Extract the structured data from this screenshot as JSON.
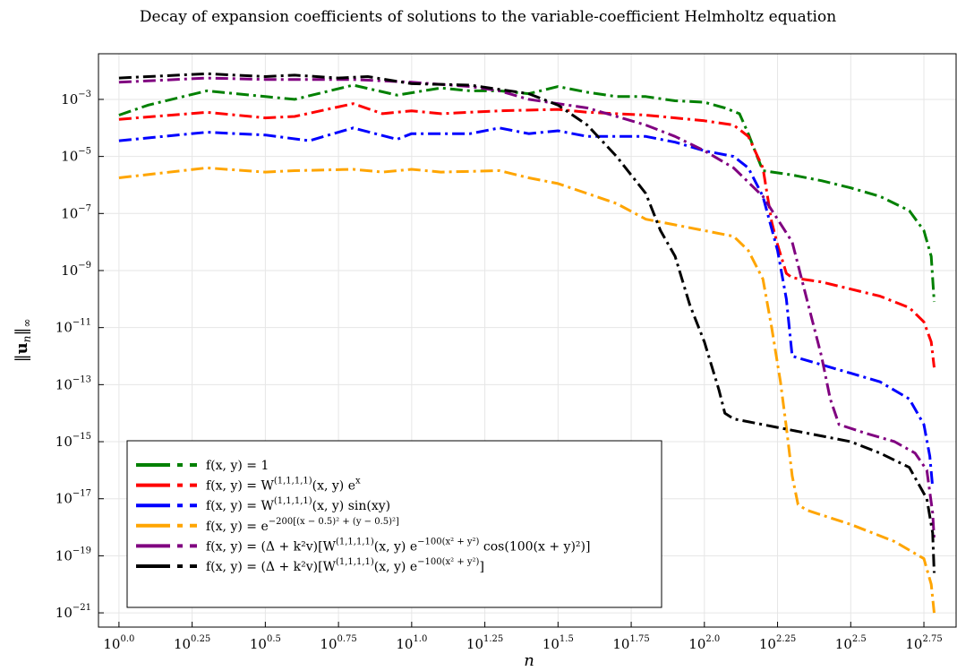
{
  "chart_data": {
    "type": "line",
    "title": "Decay of expansion coefficients of solutions to the variable-coefficient Helmholtz equation",
    "xlabel": "n",
    "ylabel": "‖u_n‖_∞",
    "xscale": "log10",
    "yscale": "log10",
    "xlim_log10": [
      -0.07,
      2.86
    ],
    "ylim_log10": [
      -21.5,
      -1.4
    ],
    "x_ticks": [
      {
        "base": "10",
        "exp": "0.0",
        "log": 0.0
      },
      {
        "base": "10",
        "exp": "0.25",
        "log": 0.25
      },
      {
        "base": "10",
        "exp": "0.5",
        "log": 0.5
      },
      {
        "base": "10",
        "exp": "0.75",
        "log": 0.75
      },
      {
        "base": "10",
        "exp": "1.0",
        "log": 1.0
      },
      {
        "base": "10",
        "exp": "1.25",
        "log": 1.25
      },
      {
        "base": "10",
        "exp": "1.5",
        "log": 1.5
      },
      {
        "base": "10",
        "exp": "1.75",
        "log": 1.75
      },
      {
        "base": "10",
        "exp": "2.0",
        "log": 2.0
      },
      {
        "base": "10",
        "exp": "2.25",
        "log": 2.25
      },
      {
        "base": "10",
        "exp": "2.5",
        "log": 2.5
      },
      {
        "base": "10",
        "exp": "2.75",
        "log": 2.75
      }
    ],
    "y_ticks": [
      {
        "base": "10",
        "exp": "−3",
        "log": -3
      },
      {
        "base": "10",
        "exp": "−5",
        "log": -5
      },
      {
        "base": "10",
        "exp": "−7",
        "log": -7
      },
      {
        "base": "10",
        "exp": "−9",
        "log": -9
      },
      {
        "base": "10",
        "exp": "−11",
        "log": -11
      },
      {
        "base": "10",
        "exp": "−13",
        "log": -13
      },
      {
        "base": "10",
        "exp": "−15",
        "log": -15
      },
      {
        "base": "10",
        "exp": "−17",
        "log": -17
      },
      {
        "base": "10",
        "exp": "−19",
        "log": -19
      },
      {
        "base": "10",
        "exp": "−21",
        "log": -21
      }
    ],
    "grid": true,
    "legend_position": "bottom-left",
    "series": [
      {
        "name": "f(x, y) = 1",
        "color": "#008000",
        "points_log10": [
          [
            0.0,
            -3.55
          ],
          [
            0.1,
            -3.2
          ],
          [
            0.3,
            -2.7
          ],
          [
            0.5,
            -2.9
          ],
          [
            0.6,
            -3.0
          ],
          [
            0.8,
            -2.5
          ],
          [
            0.95,
            -2.85
          ],
          [
            1.1,
            -2.6
          ],
          [
            1.2,
            -2.7
          ],
          [
            1.3,
            -2.7
          ],
          [
            1.4,
            -2.8
          ],
          [
            1.5,
            -2.55
          ],
          [
            1.6,
            -2.75
          ],
          [
            1.7,
            -2.9
          ],
          [
            1.8,
            -2.9
          ],
          [
            1.9,
            -3.05
          ],
          [
            2.0,
            -3.1
          ],
          [
            2.07,
            -3.3
          ],
          [
            2.12,
            -3.5
          ],
          [
            2.15,
            -4.2
          ],
          [
            2.18,
            -5.0
          ],
          [
            2.2,
            -5.5
          ],
          [
            2.3,
            -5.65
          ],
          [
            2.4,
            -5.85
          ],
          [
            2.5,
            -6.1
          ],
          [
            2.6,
            -6.4
          ],
          [
            2.7,
            -6.9
          ],
          [
            2.75,
            -7.6
          ],
          [
            2.775,
            -8.5
          ],
          [
            2.785,
            -10.1
          ]
        ]
      },
      {
        "name": "f(x, y) = W^(1,1,1,1)(x, y) e^x",
        "color": "#ff0000",
        "points_log10": [
          [
            0.0,
            -3.7
          ],
          [
            0.3,
            -3.45
          ],
          [
            0.5,
            -3.65
          ],
          [
            0.6,
            -3.6
          ],
          [
            0.8,
            -3.15
          ],
          [
            0.9,
            -3.5
          ],
          [
            1.0,
            -3.4
          ],
          [
            1.1,
            -3.5
          ],
          [
            1.3,
            -3.4
          ],
          [
            1.5,
            -3.35
          ],
          [
            1.6,
            -3.45
          ],
          [
            1.8,
            -3.55
          ],
          [
            1.9,
            -3.65
          ],
          [
            2.0,
            -3.75
          ],
          [
            2.1,
            -3.9
          ],
          [
            2.15,
            -4.3
          ],
          [
            2.2,
            -5.4
          ],
          [
            2.23,
            -7.3
          ],
          [
            2.25,
            -8.1
          ],
          [
            2.28,
            -9.1
          ],
          [
            2.3,
            -9.25
          ],
          [
            2.4,
            -9.4
          ],
          [
            2.5,
            -9.65
          ],
          [
            2.6,
            -9.9
          ],
          [
            2.7,
            -10.3
          ],
          [
            2.75,
            -10.8
          ],
          [
            2.775,
            -11.5
          ],
          [
            2.785,
            -12.4
          ]
        ]
      },
      {
        "name": "f(x, y) = W^(1,1,1,1)(x, y) sin(xy)",
        "color": "#0000ff",
        "points_log10": [
          [
            0.0,
            -4.45
          ],
          [
            0.3,
            -4.15
          ],
          [
            0.5,
            -4.25
          ],
          [
            0.65,
            -4.45
          ],
          [
            0.8,
            -4.0
          ],
          [
            0.95,
            -4.4
          ],
          [
            1.0,
            -4.2
          ],
          [
            1.2,
            -4.2
          ],
          [
            1.3,
            -4.0
          ],
          [
            1.4,
            -4.2
          ],
          [
            1.5,
            -4.1
          ],
          [
            1.6,
            -4.3
          ],
          [
            1.8,
            -4.3
          ],
          [
            1.9,
            -4.5
          ],
          [
            2.0,
            -4.8
          ],
          [
            2.1,
            -5.0
          ],
          [
            2.15,
            -5.4
          ],
          [
            2.2,
            -6.4
          ],
          [
            2.25,
            -8.3
          ],
          [
            2.28,
            -10.0
          ],
          [
            2.3,
            -12.0
          ],
          [
            2.4,
            -12.3
          ],
          [
            2.5,
            -12.6
          ],
          [
            2.6,
            -12.9
          ],
          [
            2.7,
            -13.5
          ],
          [
            2.75,
            -14.4
          ],
          [
            2.77,
            -15.5
          ],
          [
            2.78,
            -16.6
          ]
        ]
      },
      {
        "name": "f(x, y) = e^(−200[(x − 0.5)² + (y − 0.5)²])",
        "color": "#ffa500",
        "points_log10": [
          [
            0.0,
            -5.75
          ],
          [
            0.3,
            -5.4
          ],
          [
            0.5,
            -5.55
          ],
          [
            0.6,
            -5.5
          ],
          [
            0.8,
            -5.45
          ],
          [
            0.9,
            -5.55
          ],
          [
            1.0,
            -5.45
          ],
          [
            1.1,
            -5.55
          ],
          [
            1.3,
            -5.5
          ],
          [
            1.4,
            -5.75
          ],
          [
            1.5,
            -5.95
          ],
          [
            1.6,
            -6.3
          ],
          [
            1.7,
            -6.65
          ],
          [
            1.8,
            -7.2
          ],
          [
            1.9,
            -7.4
          ],
          [
            2.0,
            -7.6
          ],
          [
            2.1,
            -7.8
          ],
          [
            2.15,
            -8.3
          ],
          [
            2.2,
            -9.3
          ],
          [
            2.23,
            -11.0
          ],
          [
            2.26,
            -12.9
          ],
          [
            2.28,
            -14.5
          ],
          [
            2.3,
            -16.2
          ],
          [
            2.32,
            -17.2
          ],
          [
            2.35,
            -17.4
          ],
          [
            2.5,
            -17.9
          ],
          [
            2.65,
            -18.5
          ],
          [
            2.75,
            -19.1
          ],
          [
            2.775,
            -20.0
          ],
          [
            2.785,
            -21.0
          ]
        ]
      },
      {
        "name": "f(x, y) = (Δ + k²v)[W^(1,1,1,1)(x, y) e^(−100(x² + y²)) cos(100(x + y)²)]",
        "color": "#800080",
        "points_log10": [
          [
            0.0,
            -2.4
          ],
          [
            0.3,
            -2.25
          ],
          [
            0.5,
            -2.3
          ],
          [
            0.6,
            -2.3
          ],
          [
            0.7,
            -2.3
          ],
          [
            0.8,
            -2.3
          ],
          [
            1.0,
            -2.4
          ],
          [
            1.2,
            -2.55
          ],
          [
            1.3,
            -2.7
          ],
          [
            1.4,
            -3.0
          ],
          [
            1.6,
            -3.3
          ],
          [
            1.7,
            -3.6
          ],
          [
            1.8,
            -3.9
          ],
          [
            1.9,
            -4.3
          ],
          [
            2.0,
            -4.8
          ],
          [
            2.1,
            -5.4
          ],
          [
            2.2,
            -6.4
          ],
          [
            2.3,
            -8.0
          ],
          [
            2.35,
            -10.0
          ],
          [
            2.4,
            -12.0
          ],
          [
            2.43,
            -13.5
          ],
          [
            2.46,
            -14.4
          ],
          [
            2.55,
            -14.7
          ],
          [
            2.65,
            -15.0
          ],
          [
            2.72,
            -15.4
          ],
          [
            2.76,
            -16.0
          ],
          [
            2.78,
            -17.5
          ],
          [
            2.785,
            -18.4
          ]
        ]
      },
      {
        "name": "f(x, y) = (Δ + k²v)[W^(1,1,1,1)(x, y) e^(−100(x² + y²))]",
        "color": "#000000",
        "points_log10": [
          [
            0.0,
            -2.25
          ],
          [
            0.3,
            -2.1
          ],
          [
            0.5,
            -2.2
          ],
          [
            0.6,
            -2.15
          ],
          [
            0.75,
            -2.25
          ],
          [
            0.85,
            -2.2
          ],
          [
            1.0,
            -2.45
          ],
          [
            1.2,
            -2.5
          ],
          [
            1.4,
            -2.8
          ],
          [
            1.5,
            -3.2
          ],
          [
            1.6,
            -3.9
          ],
          [
            1.7,
            -5.0
          ],
          [
            1.8,
            -6.3
          ],
          [
            1.85,
            -7.6
          ],
          [
            1.9,
            -8.5
          ],
          [
            1.95,
            -10.2
          ],
          [
            2.0,
            -11.5
          ],
          [
            2.05,
            -13.2
          ],
          [
            2.07,
            -14.0
          ],
          [
            2.1,
            -14.2
          ],
          [
            2.3,
            -14.6
          ],
          [
            2.5,
            -15.0
          ],
          [
            2.6,
            -15.4
          ],
          [
            2.7,
            -15.9
          ],
          [
            2.76,
            -17.0
          ],
          [
            2.78,
            -18.2
          ],
          [
            2.785,
            -19.6
          ]
        ]
      }
    ]
  },
  "legend": {
    "entries": [
      {
        "base": "f(x, y) = 1"
      },
      {
        "base": "f(x, y) = W",
        "sup": "(1,1,1,1)",
        "rest": "(x, y) e",
        "sup2": "x"
      },
      {
        "base": "f(x, y) = W",
        "sup": "(1,1,1,1)",
        "rest": "(x, y) sin(xy)"
      },
      {
        "base": "f(x, y) = e",
        "sup": "−200[(x − 0.5)² + (y − 0.5)²]"
      },
      {
        "base": "f(x, y) = (Δ + k²v)[W",
        "sup": "(1,1,1,1)",
        "rest": "(x, y) e",
        "sup2": "−100(x² + y²)",
        "rest2": " cos(100(x + y)²)]"
      },
      {
        "base": "f(x, y) = (Δ + k²v)[W",
        "sup": "(1,1,1,1)",
        "rest": "(x, y) e",
        "sup2": "−100(x² + y²)",
        "rest2": "]"
      }
    ]
  },
  "ylabel_parts": {
    "pre": "‖",
    "bold": "u",
    "sub": "n",
    "post": "‖",
    "sub2": "∞"
  }
}
